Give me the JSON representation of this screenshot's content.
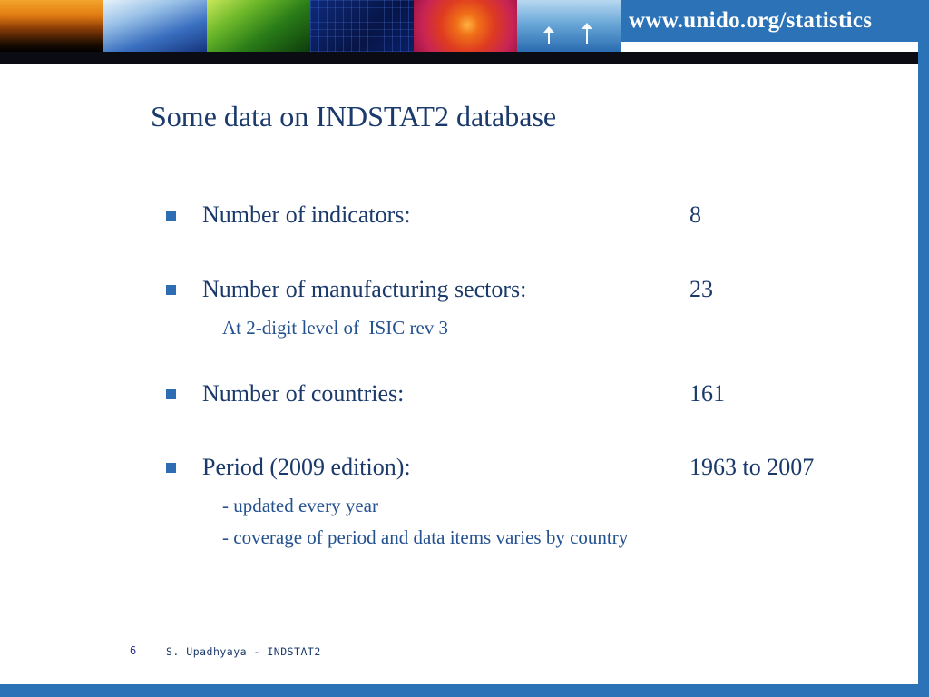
{
  "colors": {
    "accent_blue": "#2c72b6",
    "dark_divider": "#0b0b14",
    "text_blue": "#1b3a6b",
    "bullet_blue": "#2e6db4"
  },
  "header": {
    "url": "www.unido.org/statistics"
  },
  "photo_strip": {
    "tiles": [
      "sunset-silhouette-photo",
      "laboratory-glassware-photo",
      "green-leaf-photo",
      "circuit-board-photo",
      "red-flower-photo",
      "wind-turbines-photo"
    ]
  },
  "slide": {
    "title": "Some data on INDSTAT2 database",
    "bullets": [
      {
        "label": "Number of indicators:",
        "value": "8"
      },
      {
        "label": "Number of manufacturing sectors:",
        "value": "23",
        "note": "At 2-digit level of  ISIC rev 3"
      },
      {
        "label": "Number of countries:",
        "value": "161"
      },
      {
        "label": "Period (2009 edition):",
        "value": "1963 to 2007",
        "notes": [
          "- updated every year",
          "- coverage of period and data items varies by country"
        ]
      }
    ]
  },
  "footer": {
    "page_number": "6",
    "author": "S. Upadhyaya - INDSTAT2"
  }
}
